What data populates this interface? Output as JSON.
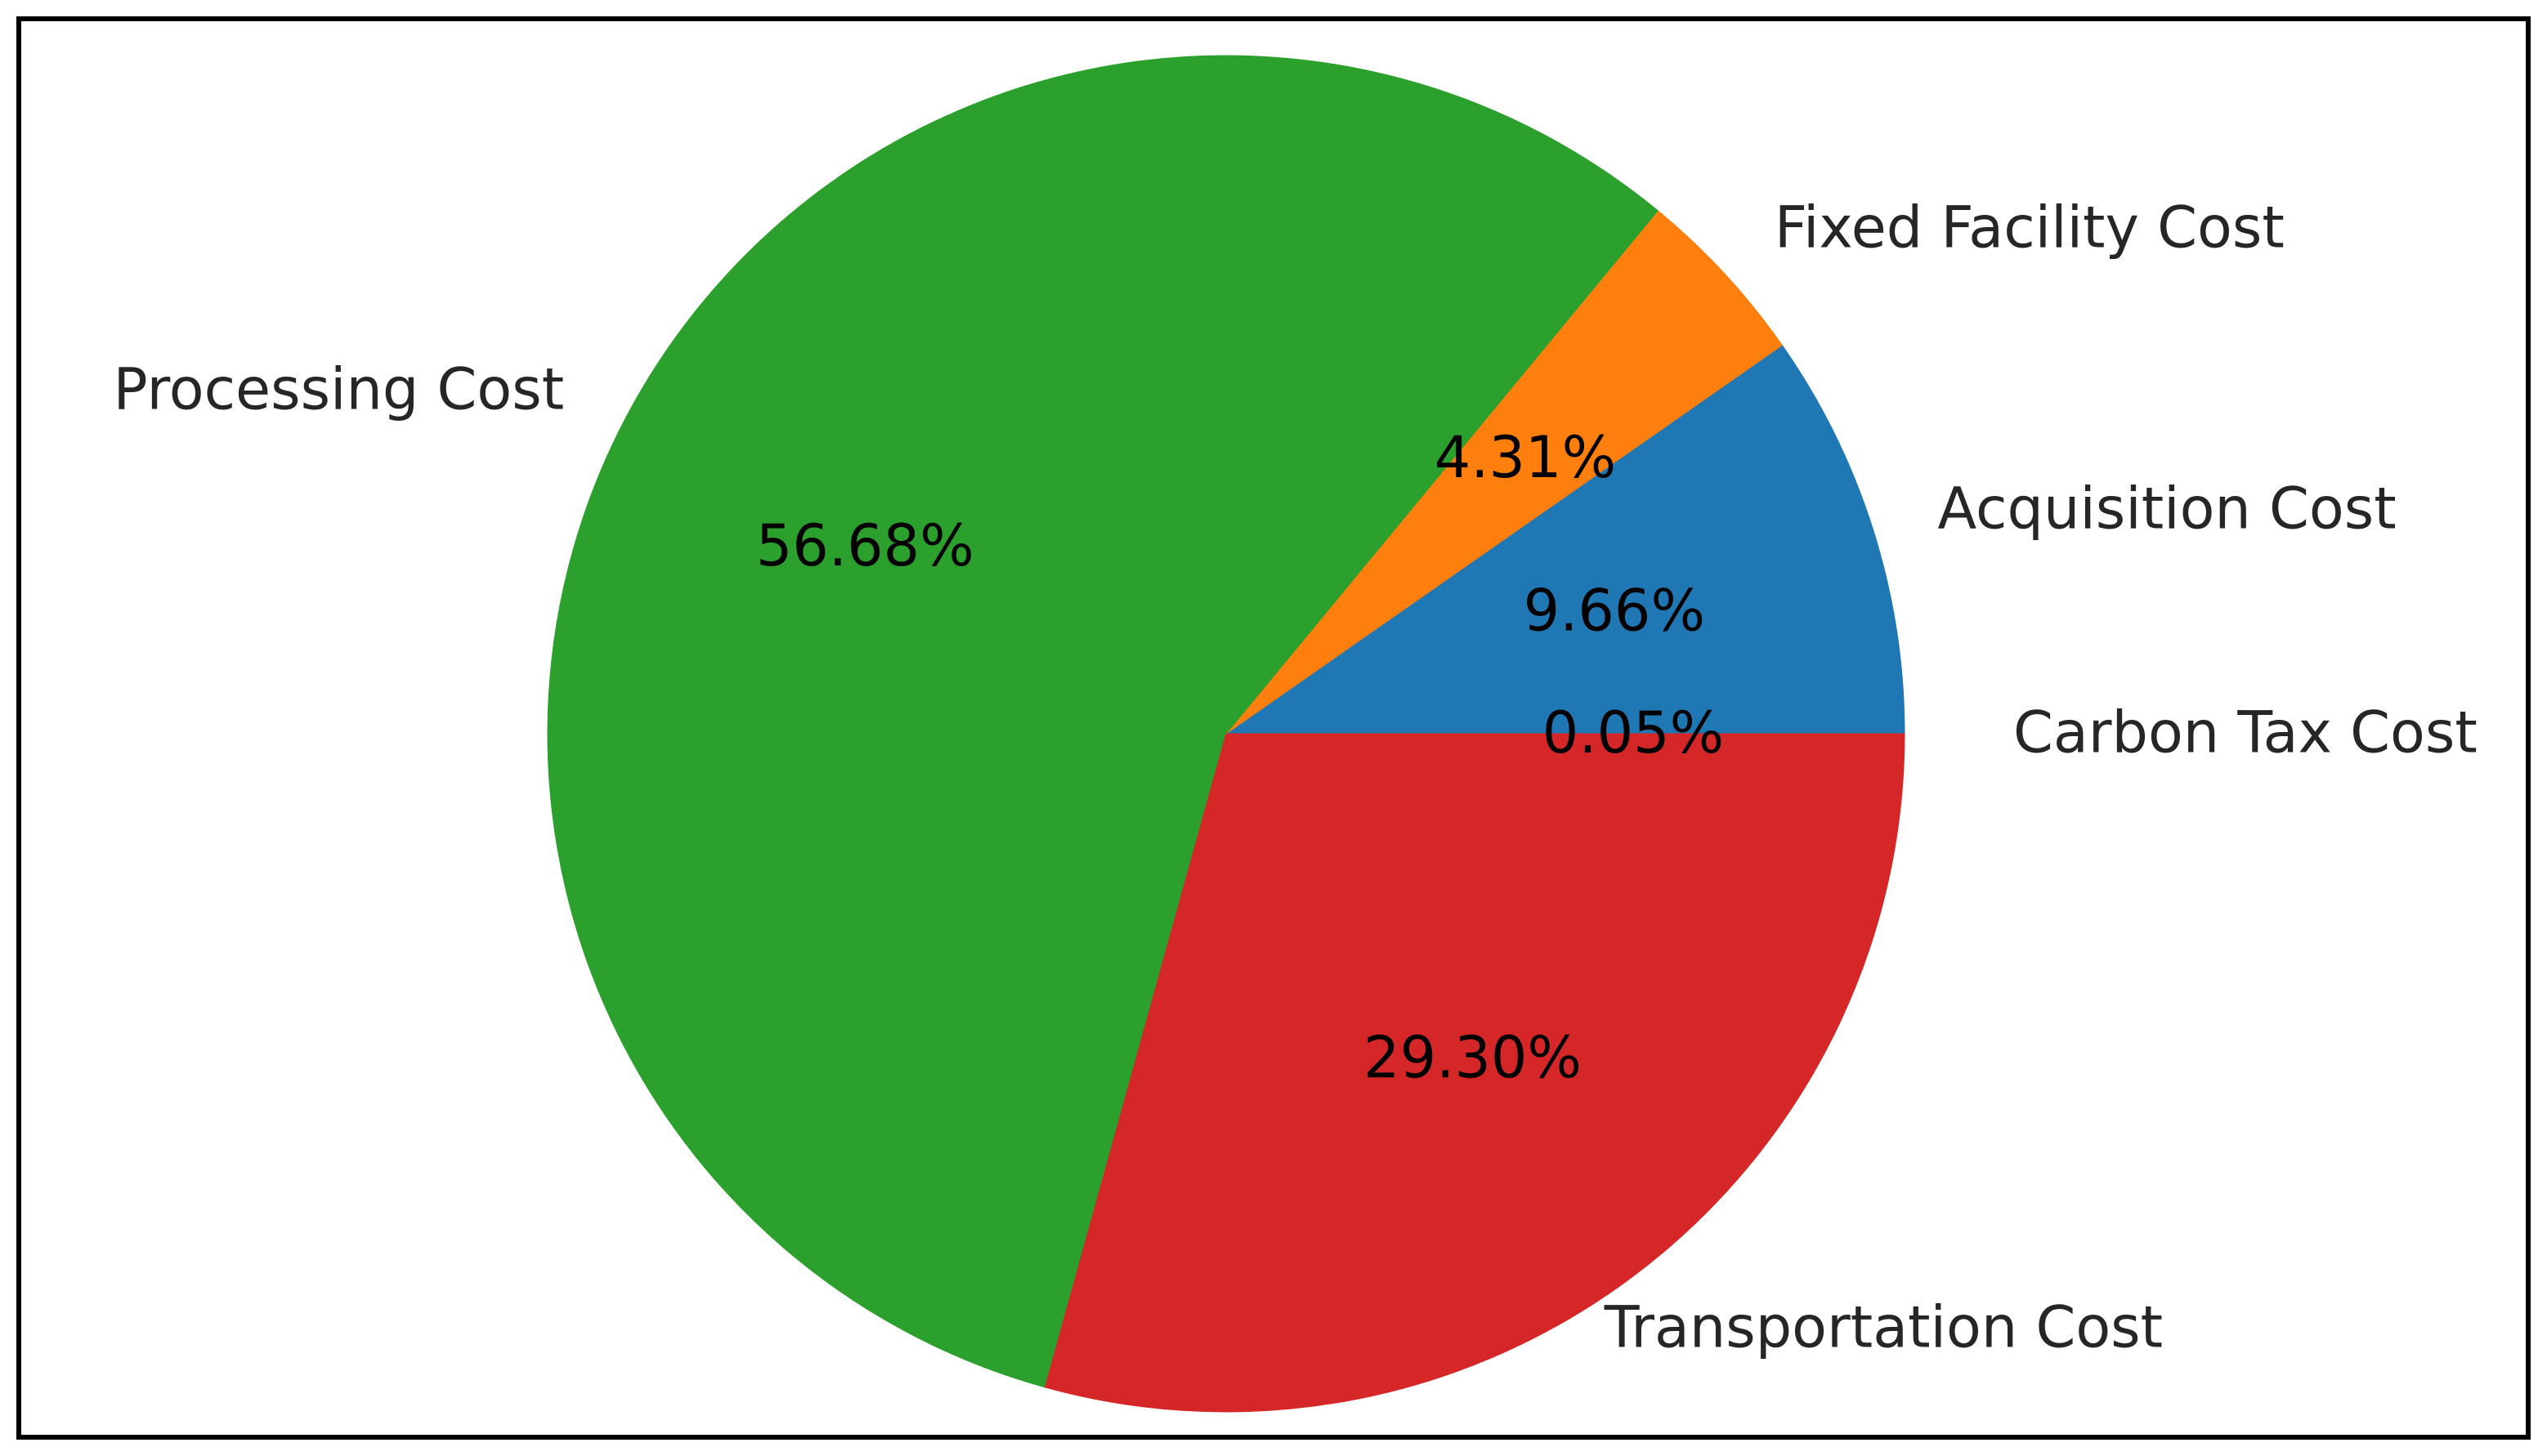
{
  "chart_data": {
    "type": "pie",
    "title": "",
    "start_angle_deg": 0,
    "direction": "counterclockwise",
    "slices": [
      {
        "label": "Carbon Tax Cost",
        "value": 0.05,
        "value_label": "0.05%",
        "color": "#1f77b4"
      },
      {
        "label": "Acquisition Cost",
        "value": 9.66,
        "value_label": "9.66%",
        "color": "#1f77b4"
      },
      {
        "label": "Fixed Facility Cost",
        "value": 4.31,
        "value_label": "4.31%",
        "color": "#ff7f0e"
      },
      {
        "label": "Processing Cost",
        "value": 56.68,
        "value_label": "56.68%",
        "color": "#2ca02c"
      },
      {
        "label": "Transportation Cost",
        "value": 29.3,
        "value_label": "29.30%",
        "color": "#d62728"
      }
    ]
  }
}
